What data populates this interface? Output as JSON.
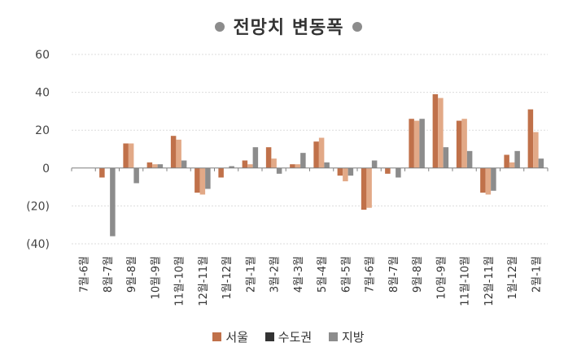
{
  "chart_data": {
    "type": "bar",
    "title": "전망치 변동폭",
    "xlabel": "",
    "ylabel": "",
    "ylim": [
      -40,
      60
    ],
    "yticks": [
      60,
      40,
      20,
      0,
      -20,
      -40
    ],
    "ytick_labels": [
      "60",
      "40",
      "20",
      "0",
      "(20)",
      "(40)"
    ],
    "grid": true,
    "legend_position": "bottom",
    "categories": [
      "7월-6월",
      "8월-7월",
      "9월-8월",
      "10월-9월",
      "11월-10월",
      "12월-11월",
      "1월-12월",
      "2월-1월",
      "3월-2월",
      "4월-3월",
      "5월-4월",
      "6월-5월",
      "7월-6월",
      "8월-7월",
      "9월-8월",
      "10월-9월",
      "11월-10월",
      "12월-11월",
      "1월-12월",
      "2월-1월"
    ],
    "series": [
      {
        "name": "서울",
        "color": "#c0714a",
        "values": [
          0,
          -5,
          13,
          3,
          17,
          -13,
          -5,
          4,
          11,
          2,
          14,
          -4,
          -22,
          -3,
          26,
          39,
          25,
          -13,
          7,
          31
        ]
      },
      {
        "name": "수도권",
        "color": "#e2a987",
        "values": [
          0,
          0,
          13,
          2,
          15,
          -14,
          0,
          2,
          5,
          2,
          16,
          -7,
          -21,
          0,
          25,
          37,
          26,
          -14,
          3,
          19
        ]
      },
      {
        "name": "지방",
        "color": "#8c8c8c",
        "values": [
          0,
          -36,
          -8,
          2,
          4,
          -11,
          1,
          11,
          -3,
          8,
          3,
          -4,
          4,
          -5,
          26,
          11,
          9,
          -12,
          9,
          5
        ]
      }
    ]
  },
  "legend": [
    {
      "label": "서울",
      "color": "#c0714a"
    },
    {
      "label": "수도권",
      "color": "#333333"
    },
    {
      "label": "지방",
      "color": "#8c8c8c"
    }
  ]
}
